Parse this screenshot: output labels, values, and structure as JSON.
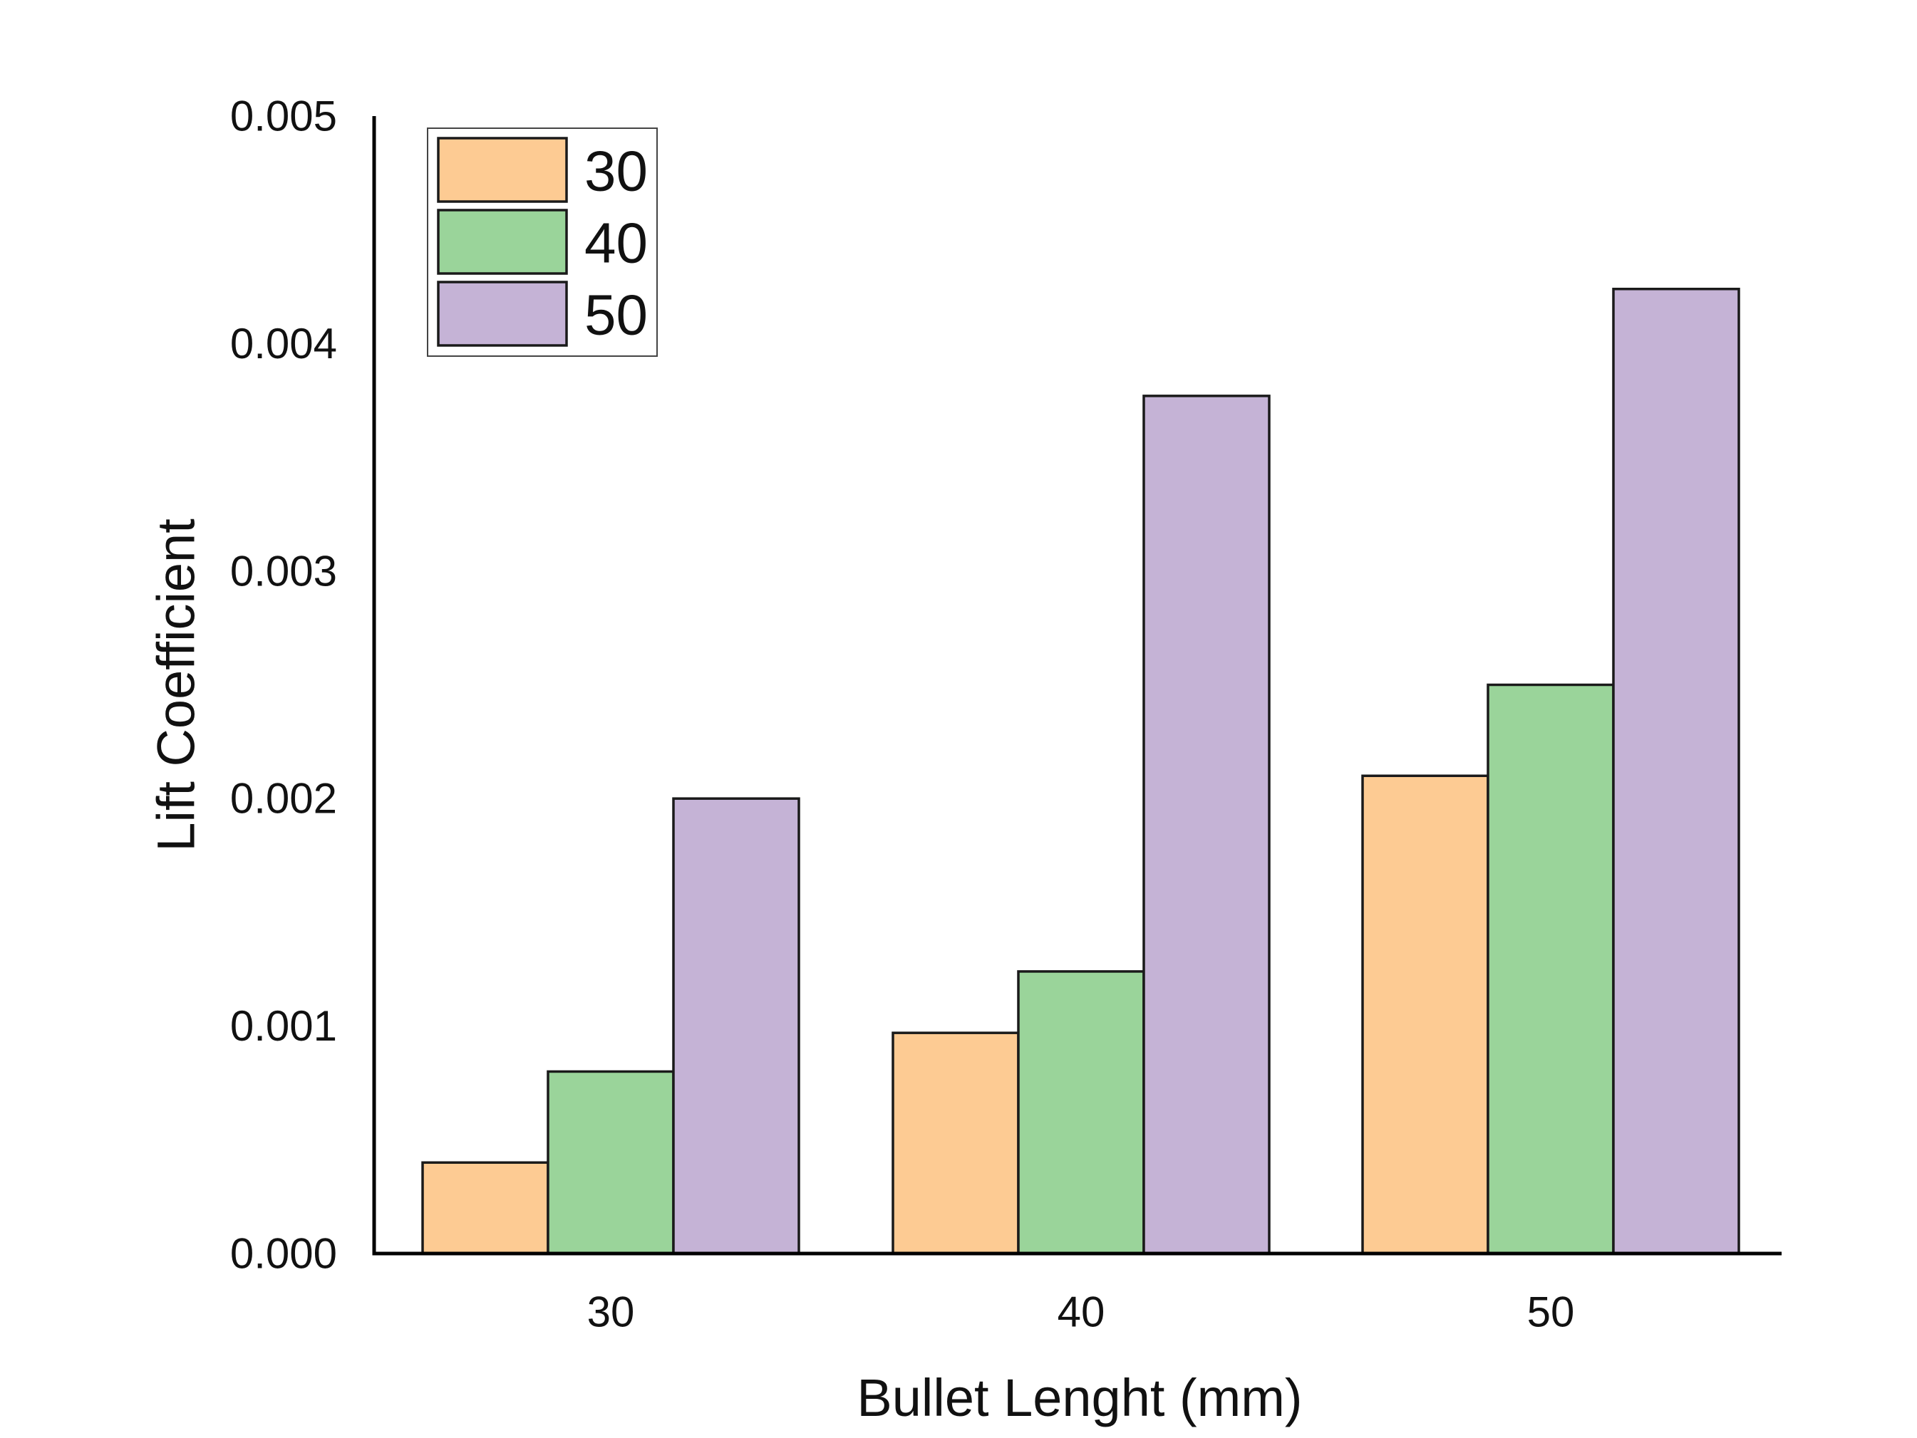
{
  "chart_data": {
    "type": "bar",
    "title": "",
    "xlabel": "Bullet Lenght (mm)",
    "ylabel": "Lift Coefficient",
    "categories": [
      "30",
      "40",
      "50"
    ],
    "series": [
      {
        "name": "30",
        "values": [
          0.0004,
          0.00097,
          0.0021
        ],
        "color": "#FDCB93"
      },
      {
        "name": "40",
        "values": [
          0.0008,
          0.00124,
          0.0025
        ],
        "color": "#9AD49A"
      },
      {
        "name": "50",
        "values": [
          0.002,
          0.00377,
          0.00424
        ],
        "color": "#C5B3D6"
      }
    ],
    "ylim": [
      0,
      0.005
    ],
    "yticks": [
      "0.000",
      "0.001",
      "0.002",
      "0.003",
      "0.004",
      "0.005"
    ],
    "grid": false,
    "legend": "top-left"
  }
}
